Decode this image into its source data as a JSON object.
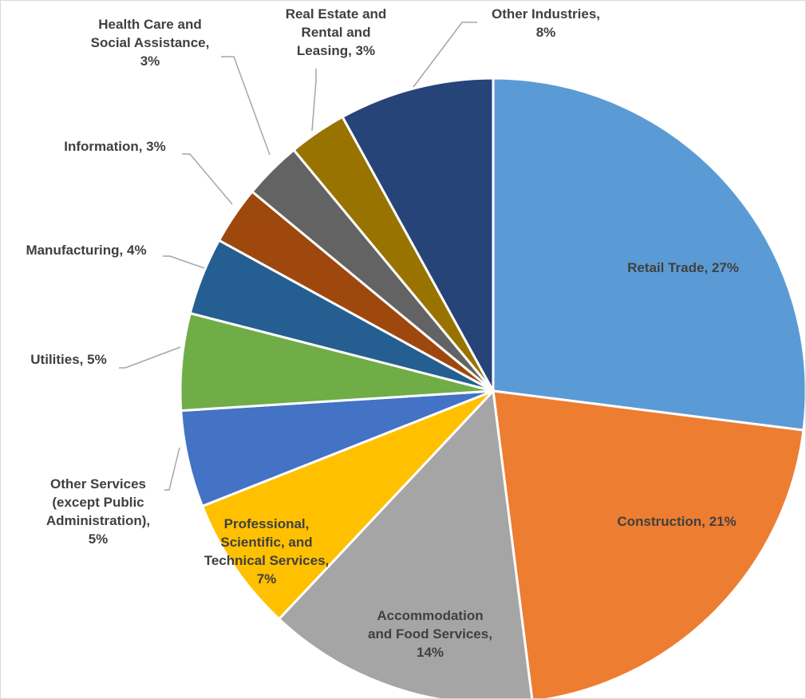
{
  "chart_data": {
    "type": "pie",
    "title": "",
    "start_angle_deg": 0,
    "direction": "clockwise",
    "slices": [
      {
        "label": "Retail Trade",
        "value": 27,
        "value_label": "27%",
        "color": "#5b9bd5",
        "label_lines": [
          "Retail Trade, 27%"
        ]
      },
      {
        "label": "Construction",
        "value": 21,
        "value_label": "21%",
        "color": "#ed7d31",
        "label_lines": [
          "Construction, 21%"
        ]
      },
      {
        "label": "Accommodation and Food Services",
        "value": 14,
        "value_label": "14%",
        "color": "#a5a5a5",
        "label_lines": [
          "Accommodation",
          "and Food Services,",
          "14%"
        ]
      },
      {
        "label": "Professional, Scientific, and Technical Services",
        "value": 7,
        "value_label": "7%",
        "color": "#ffc000",
        "label_lines": [
          "Professional,",
          "Scientific, and",
          "Technical Services,",
          "7%"
        ]
      },
      {
        "label": "Other Services (except Public Administration)",
        "value": 5,
        "value_label": "5%",
        "color": "#4472c4",
        "label_lines": [
          "Other Services",
          "(except Public",
          "Administration),",
          "5%"
        ]
      },
      {
        "label": "Utilities",
        "value": 5,
        "value_label": "5%",
        "color": "#70ad47",
        "label_lines": [
          "Utilities, 5%"
        ]
      },
      {
        "label": "Manufacturing",
        "value": 4,
        "value_label": "4%",
        "color": "#255e91",
        "label_lines": [
          "Manufacturing, 4%"
        ]
      },
      {
        "label": "Information",
        "value": 3,
        "value_label": "3%",
        "color": "#9e480e",
        "label_lines": [
          "Information, 3%"
        ]
      },
      {
        "label": "Health Care and Social Assistance",
        "value": 3,
        "value_label": "3%",
        "color": "#636363",
        "label_lines": [
          "Health Care and",
          "Social Assistance,",
          "3%"
        ]
      },
      {
        "label": "Real Estate and Rental and Leasing",
        "value": 3,
        "value_label": "3%",
        "color": "#997300",
        "label_lines": [
          "Real Estate and",
          "Rental and",
          "Leasing, 3%"
        ]
      },
      {
        "label": "Other Industries",
        "value": 8,
        "value_label": "8%",
        "color": "#264478",
        "label_lines": [
          "Other Industries,",
          "8%"
        ]
      }
    ],
    "legend": "none",
    "label_text_color": "#404040",
    "leader_line_color": "#a6a6a6"
  }
}
